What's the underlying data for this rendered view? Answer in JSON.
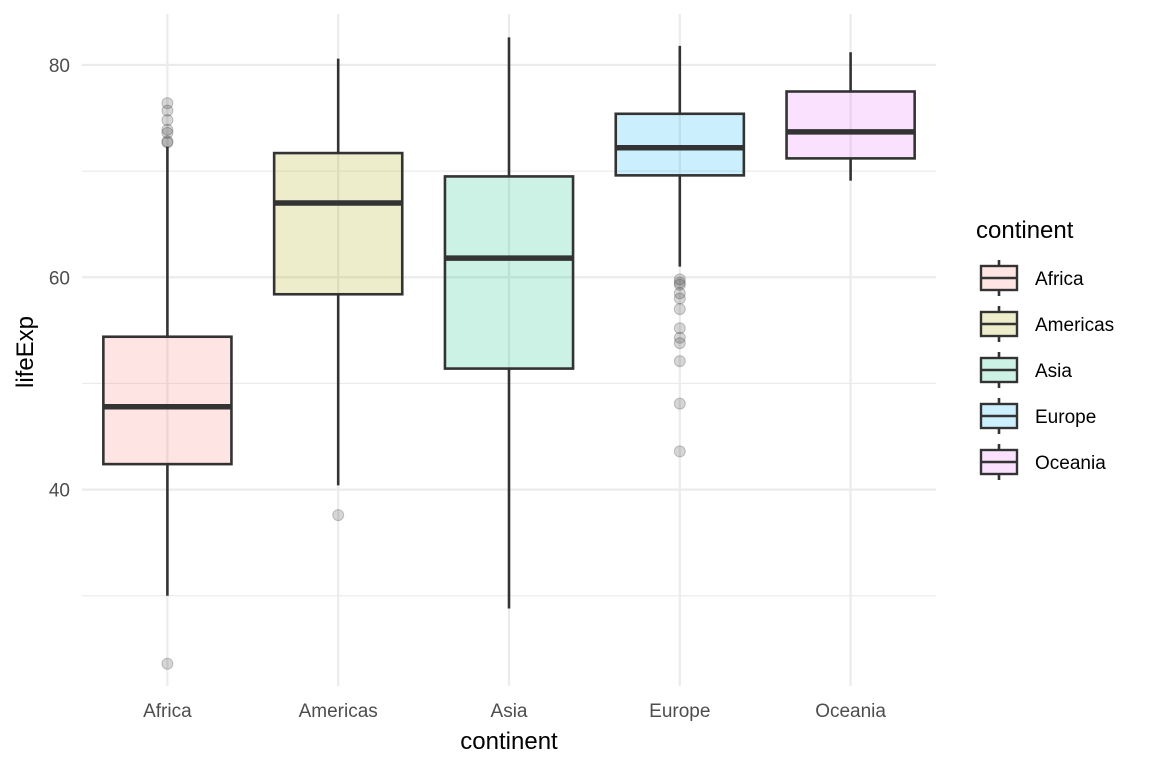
{
  "chart_data": {
    "type": "box",
    "xlabel": "continent",
    "ylabel": "lifeExp",
    "ylim": [
      21.5,
      84.8
    ],
    "y_ticks": [
      40,
      60,
      80
    ],
    "grid": true,
    "legend": {
      "title": "continent",
      "position": "right"
    },
    "categories": [
      "Africa",
      "Americas",
      "Asia",
      "Europe",
      "Oceania"
    ],
    "colors": {
      "Africa": "#F8766D",
      "Americas": "#A3A500",
      "Asia": "#00BF7D",
      "Europe": "#00B0F6",
      "Oceania": "#E76BF3"
    },
    "boxes": [
      {
        "category": "Africa",
        "q1": 42.4,
        "median": 47.8,
        "q3": 54.4,
        "whisker_low": 30.0,
        "whisker_high": 72.3,
        "outliers": [
          23.6,
          72.7,
          72.8,
          73.6,
          73.9,
          74.8,
          75.7,
          76.4
        ]
      },
      {
        "category": "Americas",
        "q1": 58.4,
        "median": 67.0,
        "q3": 71.7,
        "whisker_low": 40.4,
        "whisker_high": 80.6,
        "outliers": [
          37.6
        ]
      },
      {
        "category": "Asia",
        "q1": 51.4,
        "median": 61.8,
        "q3": 69.5,
        "whisker_low": 28.8,
        "whisker_high": 82.6,
        "outliers": []
      },
      {
        "category": "Europe",
        "q1": 69.6,
        "median": 72.2,
        "q3": 75.4,
        "whisker_low": 61.0,
        "whisker_high": 81.8,
        "outliers": [
          43.6,
          48.1,
          52.1,
          53.8,
          54.3,
          55.2,
          57.0,
          58.0,
          58.5,
          59.3,
          59.5,
          59.8
        ]
      },
      {
        "category": "Oceania",
        "q1": 71.2,
        "median": 73.7,
        "q3": 77.5,
        "whisker_low": 69.1,
        "whisker_high": 81.2,
        "outliers": []
      }
    ]
  }
}
